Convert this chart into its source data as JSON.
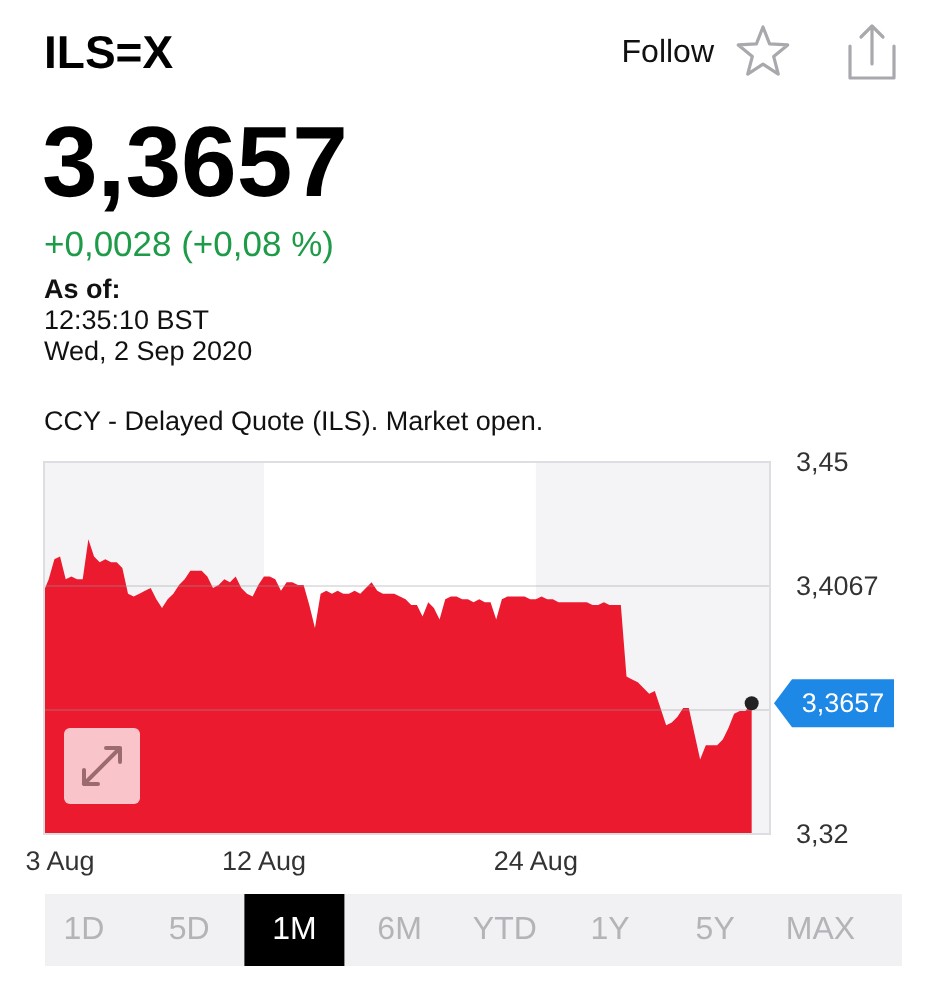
{
  "chart_data": {
    "type": "area",
    "title": "ILS=X",
    "annotations": [
      "3,3657",
      "+0,0028 (+0,08 %)",
      "As of:",
      "12:35:10 BST",
      "Wed, 2 Sep 2020",
      "CCY - Delayed Quote (ILS). Market open.",
      "Follow",
      "1D",
      "5D",
      "1M",
      "6M",
      "YTD",
      "1Y",
      "5Y",
      "MAX",
      {
        "text": "3,3657",
        "x": "2020-09-02T12:35",
        "y": 3.3657
      }
    ],
    "x": [
      "2020-08-02T07:00",
      "2020-08-02T12:00",
      "2020-08-02T18:00",
      "2020-08-03T00:00",
      "2020-08-03T06:00",
      "2020-08-03T12:00",
      "2020-08-03T18:00",
      "2020-08-04T00:00",
      "2020-08-04T06:00",
      "2020-08-04T12:00",
      "2020-08-04T18:00",
      "2020-08-05T00:00",
      "2020-08-05T06:00",
      "2020-08-05T12:00",
      "2020-08-05T18:00",
      "2020-08-06T00:00",
      "2020-08-06T06:00",
      "2020-08-06T12:00",
      "2020-08-06T18:00",
      "2020-08-07T00:00",
      "2020-08-07T06:00",
      "2020-08-07T12:00",
      "2020-08-07T18:00",
      "2020-08-08T00:00",
      "2020-08-08T06:00",
      "2020-08-08T12:00",
      "2020-08-08T18:00",
      "2020-08-09T00:00",
      "2020-08-09T06:00",
      "2020-08-09T12:00",
      "2020-08-09T18:00",
      "2020-08-10T00:00",
      "2020-08-10T06:00",
      "2020-08-10T12:00",
      "2020-08-10T18:00",
      "2020-08-11T00:00",
      "2020-08-11T06:00",
      "2020-08-11T12:00",
      "2020-08-11T18:00",
      "2020-08-12T00:00",
      "2020-08-12T06:00",
      "2020-08-12T12:00",
      "2020-08-12T18:00",
      "2020-08-13T00:00",
      "2020-08-13T06:00",
      "2020-08-13T12:00",
      "2020-08-13T18:00",
      "2020-08-14T00:00",
      "2020-08-14T06:00",
      "2020-08-14T12:00",
      "2020-08-14T18:00",
      "2020-08-15T00:00",
      "2020-08-15T06:00",
      "2020-08-15T12:00",
      "2020-08-15T18:00",
      "2020-08-16T00:00",
      "2020-08-16T06:00",
      "2020-08-16T12:00",
      "2020-08-16T18:00",
      "2020-08-17T00:00",
      "2020-08-17T06:00",
      "2020-08-17T12:00",
      "2020-08-17T18:00",
      "2020-08-18T00:00",
      "2020-08-18T06:00",
      "2020-08-18T12:00",
      "2020-08-18T18:00",
      "2020-08-19T00:00",
      "2020-08-19T06:00",
      "2020-08-19T12:00",
      "2020-08-19T18:00",
      "2020-08-20T00:00",
      "2020-08-20T06:00",
      "2020-08-20T12:00",
      "2020-08-20T18:00",
      "2020-08-21T00:00",
      "2020-08-21T06:00",
      "2020-08-21T12:00",
      "2020-08-21T18:00",
      "2020-08-22T00:00",
      "2020-08-22T06:00",
      "2020-08-22T12:00",
      "2020-08-22T18:00",
      "2020-08-23T00:00",
      "2020-08-23T06:00",
      "2020-08-23T12:00",
      "2020-08-23T18:00",
      "2020-08-24T00:00",
      "2020-08-24T06:00",
      "2020-08-24T12:00",
      "2020-08-24T18:00",
      "2020-08-25T00:00",
      "2020-08-25T06:00",
      "2020-08-25T12:00",
      "2020-08-25T18:00",
      "2020-08-26T00:00",
      "2020-08-26T06:00",
      "2020-08-26T12:00",
      "2020-08-26T18:00",
      "2020-08-27T00:00",
      "2020-08-27T06:00",
      "2020-08-27T12:00",
      "2020-08-27T18:00",
      "2020-08-28T00:00",
      "2020-08-28T06:00",
      "2020-08-28T12:00",
      "2020-08-28T18:00",
      "2020-08-29T00:00",
      "2020-08-29T06:00",
      "2020-08-29T12:00",
      "2020-08-29T18:00",
      "2020-08-30T00:00",
      "2020-08-30T06:00",
      "2020-08-30T12:00",
      "2020-08-30T18:00",
      "2020-08-31T00:00",
      "2020-08-31T06:00",
      "2020-08-31T12:00",
      "2020-08-31T18:00",
      "2020-09-01T00:00",
      "2020-09-01T06:00",
      "2020-09-01T12:00",
      "2020-09-01T18:00",
      "2020-09-02T00:00",
      "2020-09-02T06:00",
      "2020-09-02T12:35"
    ],
    "series": [
      {
        "color": "#eb1a2e",
        "values": [
          3.405,
          3.409,
          3.416,
          3.417,
          3.409,
          3.41,
          3.409,
          3.409,
          3.423,
          3.417,
          3.415,
          3.416,
          3.415,
          3.415,
          3.413,
          3.404,
          3.403,
          3.404,
          3.405,
          3.406,
          3.402,
          3.399,
          3.402,
          3.404,
          3.407,
          3.409,
          3.412,
          3.412,
          3.412,
          3.41,
          3.406,
          3.407,
          3.409,
          3.408,
          3.41,
          3.406,
          3.404,
          3.403,
          3.407,
          3.41,
          3.41,
          3.409,
          3.405,
          3.408,
          3.408,
          3.407,
          3.407,
          3.4,
          3.392,
          3.404,
          3.405,
          3.404,
          3.405,
          3.404,
          3.404,
          3.405,
          3.404,
          3.406,
          3.408,
          3.405,
          3.404,
          3.404,
          3.404,
          3.403,
          3.402,
          3.4,
          3.4,
          3.396,
          3.401,
          3.399,
          3.395,
          3.402,
          3.403,
          3.403,
          3.402,
          3.402,
          3.401,
          3.402,
          3.401,
          3.401,
          3.395,
          3.402,
          3.403,
          3.403,
          3.403,
          3.403,
          3.402,
          3.402,
          3.403,
          3.402,
          3.402,
          3.401,
          3.401,
          3.401,
          3.401,
          3.401,
          3.401,
          3.4,
          3.4,
          3.401,
          3.4,
          3.4,
          3.4,
          3.375,
          3.374,
          3.373,
          3.371,
          3.369,
          3.37,
          3.364,
          3.358,
          3.359,
          3.361,
          3.364,
          3.364,
          3.355,
          3.346,
          3.351,
          3.351,
          3.351,
          3.353,
          3.357,
          3.362,
          3.363,
          3.363,
          3.3657
        ]
      }
    ],
    "xlim": [
      "2020-08-02T07:00",
      "2020-09-03T08:00"
    ],
    "xticks": [
      {
        "value": "2020-08-03",
        "label": "3 Aug"
      },
      {
        "value": "2020-08-12",
        "label": "12 Aug"
      },
      {
        "value": "2020-08-24",
        "label": "24 Aug"
      }
    ],
    "ylim": [
      3.32,
      3.45
    ],
    "yticks": [
      {
        "value": 3.45,
        "label": "3,45"
      },
      {
        "value": 3.4067,
        "label": "3,4067"
      },
      {
        "value": 3.3633,
        "label": null
      },
      {
        "value": 3.32,
        "label": "3,32"
      }
    ],
    "grid": "y",
    "bands": [
      {
        "axis": "x",
        "from": "2020-08-02T07:00",
        "to": "2020-08-12",
        "color": "#f4f4f6"
      },
      {
        "axis": "x",
        "from": "2020-08-24",
        "to": "2020-09-03T08:00",
        "color": "#f4f4f6"
      }
    ]
  }
}
